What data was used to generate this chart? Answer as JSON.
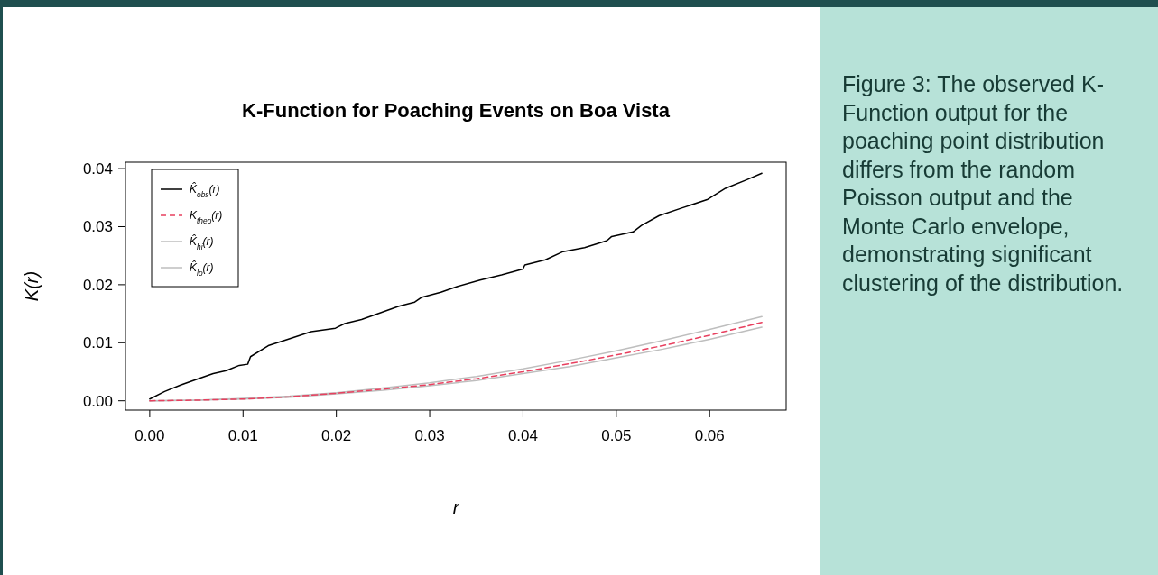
{
  "chart_data": {
    "type": "line",
    "title": "K-Function for Poaching Events on Boa Vista",
    "xlabel": "r",
    "ylabel": "K(r)",
    "xlim": [
      -0.0026,
      0.0682
    ],
    "ylim": [
      -0.0016,
      0.0411
    ],
    "xticks": [
      {
        "value": 0,
        "label": "0.00"
      },
      {
        "value": 0.01,
        "label": "0.01"
      },
      {
        "value": 0.02,
        "label": "0.02"
      },
      {
        "value": 0.03,
        "label": "0.03"
      },
      {
        "value": 0.04,
        "label": "0.04"
      },
      {
        "value": 0.05,
        "label": "0.05"
      },
      {
        "value": 0.06,
        "label": "0.06"
      }
    ],
    "yticks": [
      {
        "value": 0,
        "label": "0.00"
      },
      {
        "value": 0.01,
        "label": "0.01"
      },
      {
        "value": 0.02,
        "label": "0.02"
      },
      {
        "value": 0.03,
        "label": "0.03"
      },
      {
        "value": 0.04,
        "label": "0.04"
      }
    ],
    "grid": false,
    "legend": "top left",
    "series": [
      {
        "name": "K̂$_{obs}$(r)",
        "color": "#000000",
        "line_style": "solid",
        "x": [
          0,
          0.0016,
          0.0033,
          0.0052,
          0.0068,
          0.0082,
          0.0096,
          0.0105,
          0.0108,
          0.0127,
          0.0148,
          0.0173,
          0.0199,
          0.0209,
          0.0227,
          0.0246,
          0.0267,
          0.0284,
          0.0291,
          0.0312,
          0.033,
          0.0354,
          0.0377,
          0.04,
          0.0402,
          0.0424,
          0.0443,
          0.0466,
          0.049,
          0.0495,
          0.0518,
          0.0527,
          0.0546,
          0.057,
          0.0598,
          0.0617,
          0.064,
          0.0656
        ],
        "values": [
          0.0003,
          0.0016,
          0.0027,
          0.0038,
          0.0047,
          0.0052,
          0.0061,
          0.0063,
          0.0076,
          0.0095,
          0.0106,
          0.0119,
          0.0125,
          0.0133,
          0.014,
          0.0151,
          0.0163,
          0.017,
          0.0178,
          0.0187,
          0.0197,
          0.0208,
          0.0217,
          0.0227,
          0.0234,
          0.0243,
          0.0257,
          0.0264,
          0.0276,
          0.0283,
          0.0291,
          0.0302,
          0.0319,
          0.0332,
          0.0347,
          0.0366,
          0.0381,
          0.0392
        ]
      },
      {
        "name": "K$_{theo}$(r)",
        "color": "#e8405f",
        "line_style": "dashed",
        "x": [
          0,
          0.005,
          0.01,
          0.015,
          0.02,
          0.025,
          0.03,
          0.035,
          0.04,
          0.045,
          0.05,
          0.055,
          0.06,
          0.0656
        ],
        "values": [
          0,
          0.0001,
          0.0003,
          0.0007,
          0.0013,
          0.002,
          0.0028,
          0.0038,
          0.005,
          0.0064,
          0.0079,
          0.0095,
          0.0113,
          0.0135
        ]
      },
      {
        "name": "K̂$_{hi}$(r)",
        "color": "#bebebe",
        "line_style": "solid",
        "x": [
          0,
          0.005,
          0.01,
          0.015,
          0.02,
          0.025,
          0.03,
          0.035,
          0.04,
          0.045,
          0.05,
          0.055,
          0.06,
          0.0656
        ],
        "values": [
          0,
          0.0001,
          0.0004,
          0.0008,
          0.0014,
          0.0022,
          0.0031,
          0.0042,
          0.0055,
          0.007,
          0.0086,
          0.0104,
          0.0123,
          0.0145
        ]
      },
      {
        "name": "K̂$_{lo}$(r)",
        "color": "#bebebe",
        "line_style": "solid",
        "x": [
          0,
          0.005,
          0.01,
          0.015,
          0.02,
          0.025,
          0.03,
          0.035,
          0.04,
          0.045,
          0.05,
          0.055,
          0.06,
          0.0656
        ],
        "values": [
          0,
          0.0001,
          0.0003,
          0.0006,
          0.0012,
          0.0018,
          0.0026,
          0.0035,
          0.0047,
          0.0059,
          0.0074,
          0.0089,
          0.0106,
          0.0127
        ]
      }
    ],
    "annotations": [
      "Figure 3: The observed K-Function output for the poaching point distribution differs from the random Poisson output and the Monte Carlo envelope, demonstrating significant clustering of the distribution."
    ]
  }
}
